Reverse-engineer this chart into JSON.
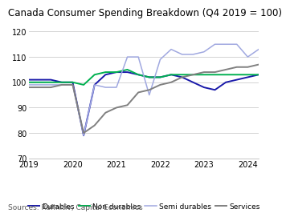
{
  "title": "Canada Consumer Spending Breakdown (Q4 2019 = 100)",
  "source": "Sources: Refinitiv, Capital Economics",
  "ylim": [
    70,
    120
  ],
  "yticks": [
    70,
    80,
    90,
    100,
    110,
    120
  ],
  "xlim": [
    2019.0,
    2024.25
  ],
  "xticks": [
    2019,
    2020,
    2021,
    2022,
    2023,
    2024
  ],
  "colors": {
    "Durables": "#1a1aaa",
    "Non durables": "#00b050",
    "Semi durables": "#a0a8e0",
    "Services": "#808080"
  },
  "series": {
    "Durables": {
      "x": [
        2019.0,
        2019.25,
        2019.5,
        2019.75,
        2020.0,
        2020.25,
        2020.5,
        2020.75,
        2021.0,
        2021.25,
        2021.5,
        2021.75,
        2022.0,
        2022.25,
        2022.5,
        2022.75,
        2023.0,
        2023.25,
        2023.5,
        2023.75,
        2024.0,
        2024.25
      ],
      "y": [
        101,
        101,
        101,
        100,
        100,
        79,
        99,
        103,
        104,
        104,
        103,
        102,
        102,
        103,
        102,
        100,
        98,
        97,
        100,
        101,
        102,
        103
      ]
    },
    "Non durables": {
      "x": [
        2019.0,
        2019.25,
        2019.5,
        2019.75,
        2020.0,
        2020.25,
        2020.5,
        2020.75,
        2021.0,
        2021.25,
        2021.5,
        2021.75,
        2022.0,
        2022.25,
        2022.5,
        2022.75,
        2023.0,
        2023.25,
        2023.5,
        2023.75,
        2024.0,
        2024.25
      ],
      "y": [
        100,
        100,
        100,
        100,
        100,
        99,
        103,
        104,
        104,
        105,
        103,
        102,
        102,
        103,
        103,
        103,
        103,
        103,
        103,
        103,
        103,
        103
      ]
    },
    "Semi durables": {
      "x": [
        2019.0,
        2019.25,
        2019.5,
        2019.75,
        2020.0,
        2020.25,
        2020.5,
        2020.75,
        2021.0,
        2021.25,
        2021.5,
        2021.75,
        2022.0,
        2022.25,
        2022.5,
        2022.75,
        2023.0,
        2023.25,
        2023.5,
        2023.75,
        2024.0,
        2024.25
      ],
      "y": [
        99,
        99,
        99,
        99,
        99,
        79,
        99,
        98,
        98,
        110,
        110,
        95,
        109,
        113,
        111,
        111,
        112,
        115,
        115,
        115,
        110,
        113
      ]
    },
    "Services": {
      "x": [
        2019.0,
        2019.25,
        2019.5,
        2019.75,
        2020.0,
        2020.25,
        2020.5,
        2020.75,
        2021.0,
        2021.25,
        2021.5,
        2021.75,
        2022.0,
        2022.25,
        2022.5,
        2022.75,
        2023.0,
        2023.25,
        2023.5,
        2023.75,
        2024.0,
        2024.25
      ],
      "y": [
        98,
        98,
        98,
        99,
        99,
        80,
        83,
        88,
        90,
        91,
        96,
        97,
        99,
        100,
        102,
        103,
        104,
        104,
        105,
        106,
        106,
        107
      ]
    }
  },
  "legend": [
    "Durables",
    "Non durables",
    "Semi durables",
    "Services"
  ],
  "title_fontsize": 8.5,
  "axis_fontsize": 7,
  "source_fontsize": 6.5,
  "legend_fontsize": 6.5
}
